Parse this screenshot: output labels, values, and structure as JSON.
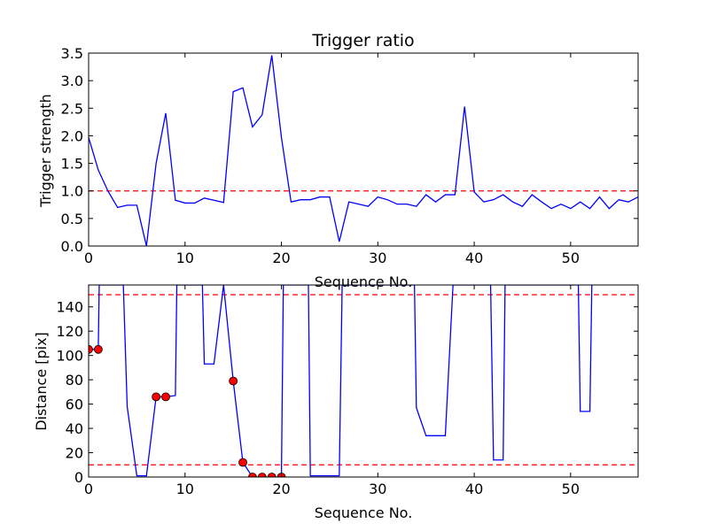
{
  "chart_data": [
    {
      "type": "line",
      "title": "Trigger ratio",
      "xlabel": "Sequence No.",
      "ylabel": "Trigger strength",
      "xlim": [
        0,
        57
      ],
      "ylim": [
        0,
        3.5
      ],
      "xticks": [
        0,
        10,
        20,
        30,
        40,
        50
      ],
      "xtick_labels": [
        "0",
        "10",
        "20",
        "30",
        "40",
        "50"
      ],
      "yticks": [
        0,
        0.5,
        1.0,
        1.5,
        2.0,
        2.5,
        3.0,
        3.5
      ],
      "ytick_labels": [
        "0.0",
        "0.5",
        "1.0",
        "1.5",
        "2.0",
        "2.5",
        "3.0",
        "3.5"
      ],
      "series": [
        {
          "color": "#0000ff",
          "x": [
            0,
            1,
            2,
            3,
            4,
            5,
            6,
            7,
            8,
            9,
            10,
            11,
            12,
            13,
            14,
            15,
            16,
            17,
            18,
            19,
            20,
            21,
            22,
            23,
            24,
            25,
            26,
            27,
            28,
            29,
            30,
            31,
            32,
            33,
            34,
            35,
            36,
            37,
            38,
            39,
            40,
            41,
            42,
            43,
            44,
            45,
            46,
            47,
            48,
            49,
            50,
            51,
            52,
            53,
            54,
            55,
            56,
            57
          ],
          "values": [
            1.97,
            1.38,
            1.0,
            0.7,
            0.74,
            0.74,
            0.0,
            1.5,
            2.41,
            0.83,
            0.78,
            0.78,
            0.87,
            0.83,
            0.79,
            2.8,
            2.87,
            2.16,
            2.38,
            3.46,
            1.97,
            0.8,
            0.84,
            0.84,
            0.89,
            0.89,
            0.08,
            0.8,
            0.76,
            0.72,
            0.89,
            0.84,
            0.76,
            0.76,
            0.72,
            0.93,
            0.8,
            0.93,
            0.93,
            2.53,
            0.98,
            0.8,
            0.84,
            0.93,
            0.8,
            0.72,
            0.93,
            0.8,
            0.68,
            0.76,
            0.68,
            0.8,
            0.68,
            0.89,
            0.68,
            0.84,
            0.8,
            0.89
          ]
        }
      ],
      "hlines": [
        {
          "y": 1.0,
          "color": "#ff0000",
          "style": "dashed"
        }
      ]
    },
    {
      "type": "line",
      "title": "",
      "xlabel": "Sequence No.",
      "ylabel": "Distance [pix]",
      "xlim": [
        0,
        57
      ],
      "ylim": [
        0,
        158
      ],
      "xticks": [
        0,
        10,
        20,
        30,
        40,
        50
      ],
      "xtick_labels": [
        "0",
        "10",
        "20",
        "30",
        "40",
        "50"
      ],
      "yticks": [
        0,
        20,
        40,
        60,
        80,
        100,
        120,
        140
      ],
      "ytick_labels": [
        "0",
        "20",
        "40",
        "60",
        "80",
        "100",
        "120",
        "140"
      ],
      "series": [
        {
          "color": "#0000ff",
          "x": [
            0,
            1,
            1.1,
            3.6,
            4,
            5,
            6,
            7,
            8,
            9,
            9.15,
            11.8,
            12,
            13,
            14,
            15,
            16,
            17,
            18,
            19,
            20,
            20.2,
            22.8,
            23,
            24,
            25,
            26,
            26.3,
            33.8,
            34,
            35,
            36,
            37,
            37.8,
            41.7,
            42,
            43,
            43.2,
            50.8,
            51,
            52,
            52.2
          ],
          "values": [
            105,
            105,
            158,
            158,
            58,
            1,
            1,
            66,
            66,
            67,
            158,
            158,
            93,
            93,
            158,
            79,
            12,
            0,
            0,
            0,
            0,
            158,
            158,
            1,
            1,
            1,
            1,
            158,
            158,
            57,
            34,
            34,
            34,
            158,
            158,
            14,
            14,
            158,
            158,
            54,
            54,
            158
          ]
        },
        {
          "color": "#ff0000",
          "marker": "circle",
          "x": [
            0,
            1,
            7,
            8,
            15,
            16,
            17,
            18,
            19,
            20
          ],
          "values": [
            105,
            105,
            66,
            66,
            79,
            12,
            0,
            0,
            0,
            0
          ]
        }
      ],
      "hlines": [
        {
          "y": 150,
          "color": "#ff0000",
          "style": "dashed"
        },
        {
          "y": 10,
          "color": "#ff0000",
          "style": "dashed"
        }
      ]
    }
  ]
}
